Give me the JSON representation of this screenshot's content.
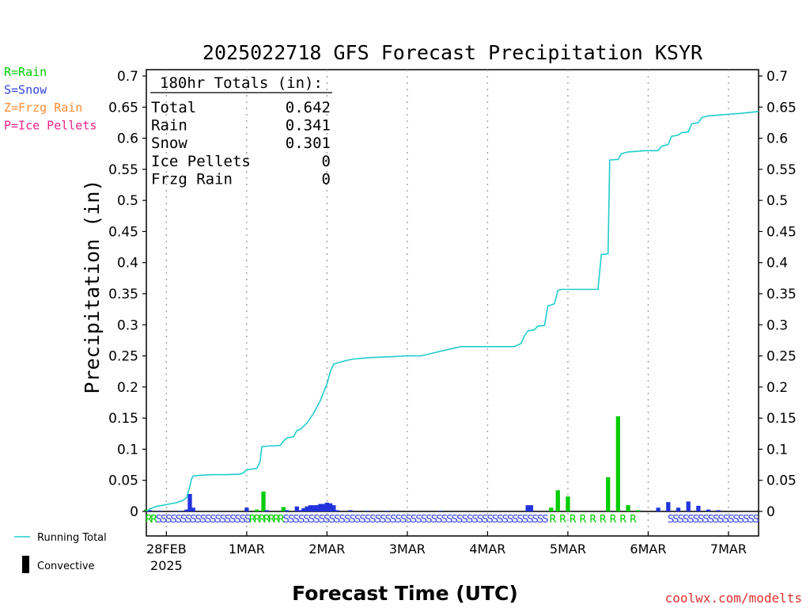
{
  "chart_data": {
    "type": "bar",
    "title": "2025022718 GFS Forecast Precipitation KSYR",
    "ylabel": "Precipitation (in)",
    "xlabel": "Forecast Time (UTC)",
    "ylim": [
      0,
      0.7
    ],
    "xlim_hours": [
      0,
      183
    ],
    "y_ticks": [
      "0",
      "0.05",
      "0.1",
      "0.15",
      "0.2",
      "0.25",
      "0.3",
      "0.35",
      "0.4",
      "0.45",
      "0.5",
      "0.55",
      "0.6",
      "0.65",
      "0.7"
    ],
    "x_ticks": [
      {
        "hour": 6,
        "label": "28FEB",
        "sublabel": "2025"
      },
      {
        "hour": 30,
        "label": "1MAR"
      },
      {
        "hour": 54,
        "label": "2MAR"
      },
      {
        "hour": 78,
        "label": "3MAR"
      },
      {
        "hour": 102,
        "label": "4MAR"
      },
      {
        "hour": 126,
        "label": "5MAR"
      },
      {
        "hour": 150,
        "label": "6MAR"
      },
      {
        "hour": 174,
        "label": "7MAR"
      }
    ],
    "grid": "vertical dotted",
    "type_legend": [
      {
        "code": "R=Rain",
        "color": "#00cc00"
      },
      {
        "code": "S=Snow",
        "color": "#3344dd"
      },
      {
        "code": "Z=Frzg Rain",
        "color": "#ff8c33"
      },
      {
        "code": "P=Ice Pellets",
        "color": "#ee2288"
      }
    ],
    "totals": {
      "heading": "180hr Totals (in):",
      "rows": [
        {
          "label": "Total",
          "value": "0.642"
        },
        {
          "label": "Rain",
          "value": "0.341"
        },
        {
          "label": "Snow",
          "value": "0.301"
        },
        {
          "label": "Ice Pellets",
          "value": "0"
        },
        {
          "label": "Frzg Rain",
          "value": "0"
        }
      ]
    },
    "series": [
      {
        "name": "Running Total",
        "type": "line",
        "color": "#22cccc",
        "points": [
          [
            0,
            0.0
          ],
          [
            1,
            0.004
          ],
          [
            3,
            0.008
          ],
          [
            6,
            0.011
          ],
          [
            9,
            0.014
          ],
          [
            11,
            0.018
          ],
          [
            12,
            0.022
          ],
          [
            13,
            0.04
          ],
          [
            13.5,
            0.052
          ],
          [
            14,
            0.057
          ],
          [
            16,
            0.058
          ],
          [
            20,
            0.059
          ],
          [
            24,
            0.059
          ],
          [
            28,
            0.06
          ],
          [
            29,
            0.062
          ],
          [
            30,
            0.067
          ],
          [
            33,
            0.069
          ],
          [
            34,
            0.08
          ],
          [
            34.5,
            0.104
          ],
          [
            36,
            0.105
          ],
          [
            40,
            0.106
          ],
          [
            41,
            0.113
          ],
          [
            42,
            0.118
          ],
          [
            44,
            0.12
          ],
          [
            45,
            0.13
          ],
          [
            46,
            0.132
          ],
          [
            48,
            0.142
          ],
          [
            50,
            0.158
          ],
          [
            52,
            0.178
          ],
          [
            54,
            0.205
          ],
          [
            55,
            0.225
          ],
          [
            56,
            0.237
          ],
          [
            58,
            0.24
          ],
          [
            60,
            0.243
          ],
          [
            62,
            0.245
          ],
          [
            66,
            0.247
          ],
          [
            70,
            0.248
          ],
          [
            74,
            0.249
          ],
          [
            78,
            0.25
          ],
          [
            82,
            0.25
          ],
          [
            86,
            0.255
          ],
          [
            90,
            0.26
          ],
          [
            94,
            0.265
          ],
          [
            98,
            0.265
          ],
          [
            102,
            0.265
          ],
          [
            106,
            0.265
          ],
          [
            110,
            0.265
          ],
          [
            112,
            0.27
          ],
          [
            113,
            0.282
          ],
          [
            114,
            0.29
          ],
          [
            116,
            0.292
          ],
          [
            117,
            0.298
          ],
          [
            119,
            0.299
          ],
          [
            120,
            0.33
          ],
          [
            122,
            0.334
          ],
          [
            123,
            0.355
          ],
          [
            124,
            0.357
          ],
          [
            135,
            0.357
          ],
          [
            136,
            0.413
          ],
          [
            138,
            0.414
          ],
          [
            138.5,
            0.565
          ],
          [
            141,
            0.566
          ],
          [
            142,
            0.575
          ],
          [
            144,
            0.578
          ],
          [
            147,
            0.579
          ],
          [
            149,
            0.58
          ],
          [
            153,
            0.58
          ],
          [
            154,
            0.587
          ],
          [
            156,
            0.59
          ],
          [
            157,
            0.603
          ],
          [
            159,
            0.605
          ],
          [
            160,
            0.609
          ],
          [
            162,
            0.61
          ],
          [
            163,
            0.623
          ],
          [
            165,
            0.625
          ],
          [
            166,
            0.633
          ],
          [
            168,
            0.636
          ],
          [
            173,
            0.638
          ],
          [
            178,
            0.64
          ],
          [
            183,
            0.643
          ]
        ]
      },
      {
        "name": "Rain",
        "type": "bar",
        "color": "#00cc00",
        "points": [
          [
            0,
            0.003
          ],
          [
            33,
            0.003
          ],
          [
            35,
            0.032
          ],
          [
            41,
            0.007
          ],
          [
            121,
            0.006
          ],
          [
            123,
            0.034
          ],
          [
            126,
            0.024
          ],
          [
            138,
            0.055
          ],
          [
            141,
            0.153
          ],
          [
            144,
            0.01
          ],
          [
            147,
            0.002
          ]
        ]
      },
      {
        "name": "Snow",
        "type": "bar",
        "color": "#2233dd",
        "points": [
          [
            1,
            0.002
          ],
          [
            4,
            0.001
          ],
          [
            10,
            0.001
          ],
          [
            12,
            0.003
          ],
          [
            13,
            0.028
          ],
          [
            14,
            0.006
          ],
          [
            30,
            0.006
          ],
          [
            36,
            0.002
          ],
          [
            42,
            0.002
          ],
          [
            45,
            0.008
          ],
          [
            46,
            0.002
          ],
          [
            47,
            0.005
          ],
          [
            48,
            0.008
          ],
          [
            49,
            0.01
          ],
          [
            50,
            0.01
          ],
          [
            51,
            0.01
          ],
          [
            52,
            0.012
          ],
          [
            53,
            0.012
          ],
          [
            54,
            0.014
          ],
          [
            55,
            0.013
          ],
          [
            56,
            0.01
          ],
          [
            57,
            0.002
          ],
          [
            61,
            0.002
          ],
          [
            66,
            0.001
          ],
          [
            72,
            0.001
          ],
          [
            88,
            0.001
          ],
          [
            114,
            0.01
          ],
          [
            115,
            0.01
          ],
          [
            153,
            0.006
          ],
          [
            156,
            0.015
          ],
          [
            159,
            0.006
          ],
          [
            162,
            0.016
          ],
          [
            165,
            0.009
          ],
          [
            168,
            0.003
          ],
          [
            171,
            0.002
          ]
        ]
      }
    ],
    "ptype_strip": [
      {
        "from": 0,
        "to": 3,
        "code": "R",
        "color": "#00cc00"
      },
      {
        "from": 3,
        "to": 31,
        "code": "S",
        "color": "#3344dd"
      },
      {
        "from": 31,
        "to": 41,
        "code": "R",
        "color": "#00cc00"
      },
      {
        "from": 41,
        "to": 99,
        "code": "S",
        "color": "#3344dd"
      },
      {
        "from": 99,
        "to": 120,
        "code": "S",
        "color": "#3344dd"
      },
      {
        "from": 120,
        "to": 147,
        "code": "R",
        "color": "#00cc00"
      },
      {
        "from": 156,
        "to": 183,
        "code": "S",
        "color": "#3344dd"
      }
    ],
    "legend": [
      {
        "label": "Running Total",
        "kind": "line",
        "color": "#22cccc"
      },
      {
        "label": "Convective",
        "kind": "bar",
        "color": "#000000"
      }
    ],
    "credit": "coolwx.com/modelts"
  }
}
